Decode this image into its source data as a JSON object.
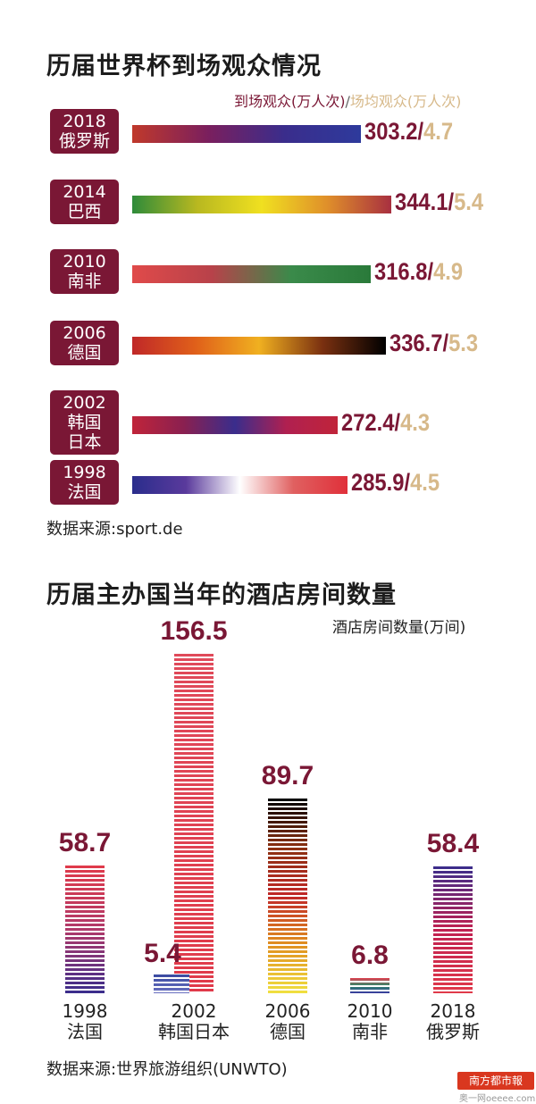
{
  "chart1": {
    "title": "历届世界杯到场观众情况",
    "legend": {
      "attendance": "到场观众(万人次)",
      "sep": "/",
      "average": "场均观众(万人次)"
    },
    "source": "数据来源:sport.de",
    "colors": {
      "primary": "#7a1735",
      "secondary": "#d7b98a"
    }
  },
  "chart2": {
    "title": "历届主办国当年的酒店房间数量",
    "unit_label": "酒店房间数量(万间)",
    "source": "数据来源:世界旅游组织(UNWTO)"
  },
  "watermark": {
    "logo": "南方都市報",
    "sub": "奥一网oeeee.com"
  },
  "chart_data": [
    {
      "type": "bar",
      "orientation": "horizontal",
      "title": "历届世界杯到场观众情况",
      "series": [
        {
          "name": "到场观众(万人次)",
          "values": [
            303.2,
            344.1,
            316.8,
            336.7,
            272.4,
            285.9
          ]
        },
        {
          "name": "场均观众(万人次)",
          "values": [
            4.7,
            5.4,
            4.9,
            5.3,
            4.3,
            4.5
          ]
        }
      ],
      "categories": [
        {
          "year": "2018",
          "country": [
            "俄罗斯"
          ]
        },
        {
          "year": "2014",
          "country": [
            "巴西"
          ]
        },
        {
          "year": "2010",
          "country": [
            "南非"
          ]
        },
        {
          "year": "2006",
          "country": [
            "德国"
          ]
        },
        {
          "year": "2002",
          "country": [
            "韩国",
            "日本"
          ]
        },
        {
          "year": "1998",
          "country": [
            "法国"
          ]
        }
      ],
      "value_labels": [
        {
          "attendance": "303.2",
          "average": "4.7"
        },
        {
          "attendance": "344.1",
          "average": "5.4"
        },
        {
          "attendance": "316.8",
          "average": "4.9"
        },
        {
          "attendance": "336.7",
          "average": "5.3"
        },
        {
          "attendance": "272.4",
          "average": "4.3"
        },
        {
          "attendance": "285.9",
          "average": "4.5"
        }
      ],
      "bar_colors": [
        [
          "#c0392b",
          "#7a1f5e",
          "#3a2d8c",
          "#2e3a9c"
        ],
        [
          "#2e8b3a",
          "#b8b820",
          "#f0e020",
          "#e0902a",
          "#a83040"
        ],
        [
          "#e04a4a",
          "#b8424a",
          "#3a8a4a",
          "#2a7a3a"
        ],
        [
          "#c02828",
          "#e0601a",
          "#f0b020",
          "#7a3010",
          "#000000"
        ],
        [
          "#c0243a",
          "#8a2050",
          "#3a2d8c",
          "#b02050",
          "#c0243a"
        ],
        [
          "#2a2d8c",
          "#5a3a9c",
          "#ffffff",
          "#e06060",
          "#e0303a"
        ]
      ],
      "xlim": [
        0,
        344.1
      ]
    },
    {
      "type": "bar",
      "title": "历届主办国当年的酒店房间数量",
      "ylabel": "酒店房间数量(万间)",
      "categories": [
        {
          "year": "1998",
          "country": [
            "法国"
          ]
        },
        {
          "year": "2002",
          "country": [
            "韩国日本"
          ]
        },
        {
          "year": "2006",
          "country": [
            "德国"
          ]
        },
        {
          "year": "2010",
          "country": [
            "南非"
          ]
        },
        {
          "year": "2018",
          "country": [
            "俄罗斯"
          ]
        }
      ],
      "series": [
        {
          "name": "韩国",
          "values": [
            null,
            5.4,
            null,
            null,
            null
          ],
          "labels": [
            "",
            "5.4",
            "",
            "",
            ""
          ]
        },
        {
          "name": "",
          "values": [
            58.7,
            156.5,
            89.7,
            6.8,
            58.4
          ],
          "labels": [
            "58.7",
            "156.5",
            "89.7",
            "6.8",
            "58.4"
          ]
        }
      ],
      "bar_colors": [
        [
          "#e03a4a",
          "#b03a6a",
          "#3a2d8c"
        ],
        [
          "#e04a5a",
          "#e03a4a"
        ],
        [
          "#000000",
          "#8a3010",
          "#c02828",
          "#e09020",
          "#f0e040"
        ],
        [
          "#e04050",
          "#2e8a6a",
          "#3a3aa0"
        ],
        [
          "#3a2d8c",
          "#c02050",
          "#e03a4a"
        ]
      ],
      "small_bar_colors": [
        "#3a4aa0",
        "#6a70c0"
      ],
      "ylim": [
        0,
        156.5
      ]
    }
  ]
}
